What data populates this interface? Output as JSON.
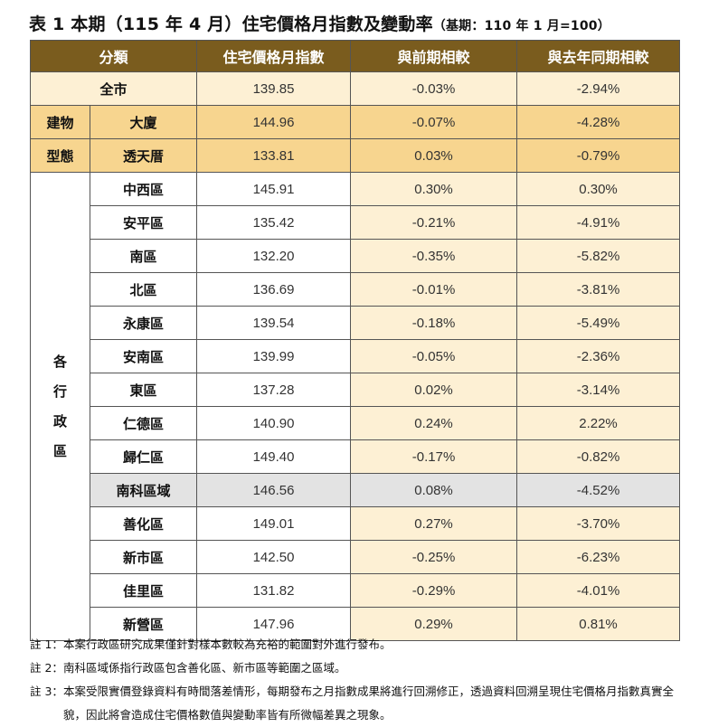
{
  "title": {
    "main": "表 1 本期（115 年 4 月）住宅價格月指數及變動率",
    "base": "（基期：110 年 1 月=100）"
  },
  "headers": [
    "分類",
    "住宅價格月指數",
    "與前期相較",
    "與去年同期相較"
  ],
  "rows": {
    "total": {
      "label": "全市",
      "index": "139.85",
      "mom": "-0.03%",
      "yoy": "-2.94%"
    },
    "building_type": {
      "group_label_1": "建物",
      "group_label_2": "型態",
      "items": [
        {
          "label": "大廈",
          "index": "144.96",
          "mom": "-0.07%",
          "yoy": "-4.28%"
        },
        {
          "label": "透天厝",
          "index": "133.81",
          "mom": "0.03%",
          "yoy": "-0.79%"
        }
      ]
    },
    "districts": {
      "group_chars": [
        "各",
        "行",
        "政",
        "區"
      ],
      "items": [
        {
          "label": "中西區",
          "index": "145.91",
          "mom": "0.30%",
          "yoy": "0.30%"
        },
        {
          "label": "安平區",
          "index": "135.42",
          "mom": "-0.21%",
          "yoy": "-4.91%"
        },
        {
          "label": "南區",
          "index": "132.20",
          "mom": "-0.35%",
          "yoy": "-5.82%"
        },
        {
          "label": "北區",
          "index": "136.69",
          "mom": "-0.01%",
          "yoy": "-3.81%"
        },
        {
          "label": "永康區",
          "index": "139.54",
          "mom": "-0.18%",
          "yoy": "-5.49%"
        },
        {
          "label": "安南區",
          "index": "139.99",
          "mom": "-0.05%",
          "yoy": "-2.36%"
        },
        {
          "label": "東區",
          "index": "137.28",
          "mom": "0.02%",
          "yoy": "-3.14%"
        },
        {
          "label": "仁德區",
          "index": "140.90",
          "mom": "0.24%",
          "yoy": "2.22%"
        },
        {
          "label": "歸仁區",
          "index": "149.40",
          "mom": "-0.17%",
          "yoy": "-0.82%"
        },
        {
          "label": "南科區域",
          "index": "146.56",
          "mom": "0.08%",
          "yoy": "-4.52%"
        },
        {
          "label": "善化區",
          "index": "149.01",
          "mom": "0.27%",
          "yoy": "-3.70%"
        },
        {
          "label": "新市區",
          "index": "142.50",
          "mom": "-0.25%",
          "yoy": "-6.23%"
        },
        {
          "label": "佳里區",
          "index": "131.82",
          "mom": "-0.29%",
          "yoy": "-4.01%"
        },
        {
          "label": "新營區",
          "index": "147.96",
          "mom": "0.29%",
          "yoy": "0.81%"
        }
      ]
    }
  },
  "notes": [
    {
      "tag": "註 1：",
      "text": "本案行政區研究成果僅針對樣本數較為充裕的範圍對外進行發布。"
    },
    {
      "tag": "註 2：",
      "text": "南科區域係指行政區包含善化區、新市區等範圍之區域。"
    },
    {
      "tag": "註 3：",
      "text": "本案受限實價登錄資料有時間落差情形，每期發布之月指數成果將進行回溯修正，透過資料回溯呈現住宅價格月指數真實全貌，因此將會造成住宅價格數值與變動率皆有所微幅差異之現象。"
    }
  ],
  "colors": {
    "header": "#7a5c1e",
    "total_row": "#fdf0d4",
    "building_row": "#f7d58f",
    "district_value": "#fdf0d4",
    "highlight_row": "#e3e3e3"
  }
}
